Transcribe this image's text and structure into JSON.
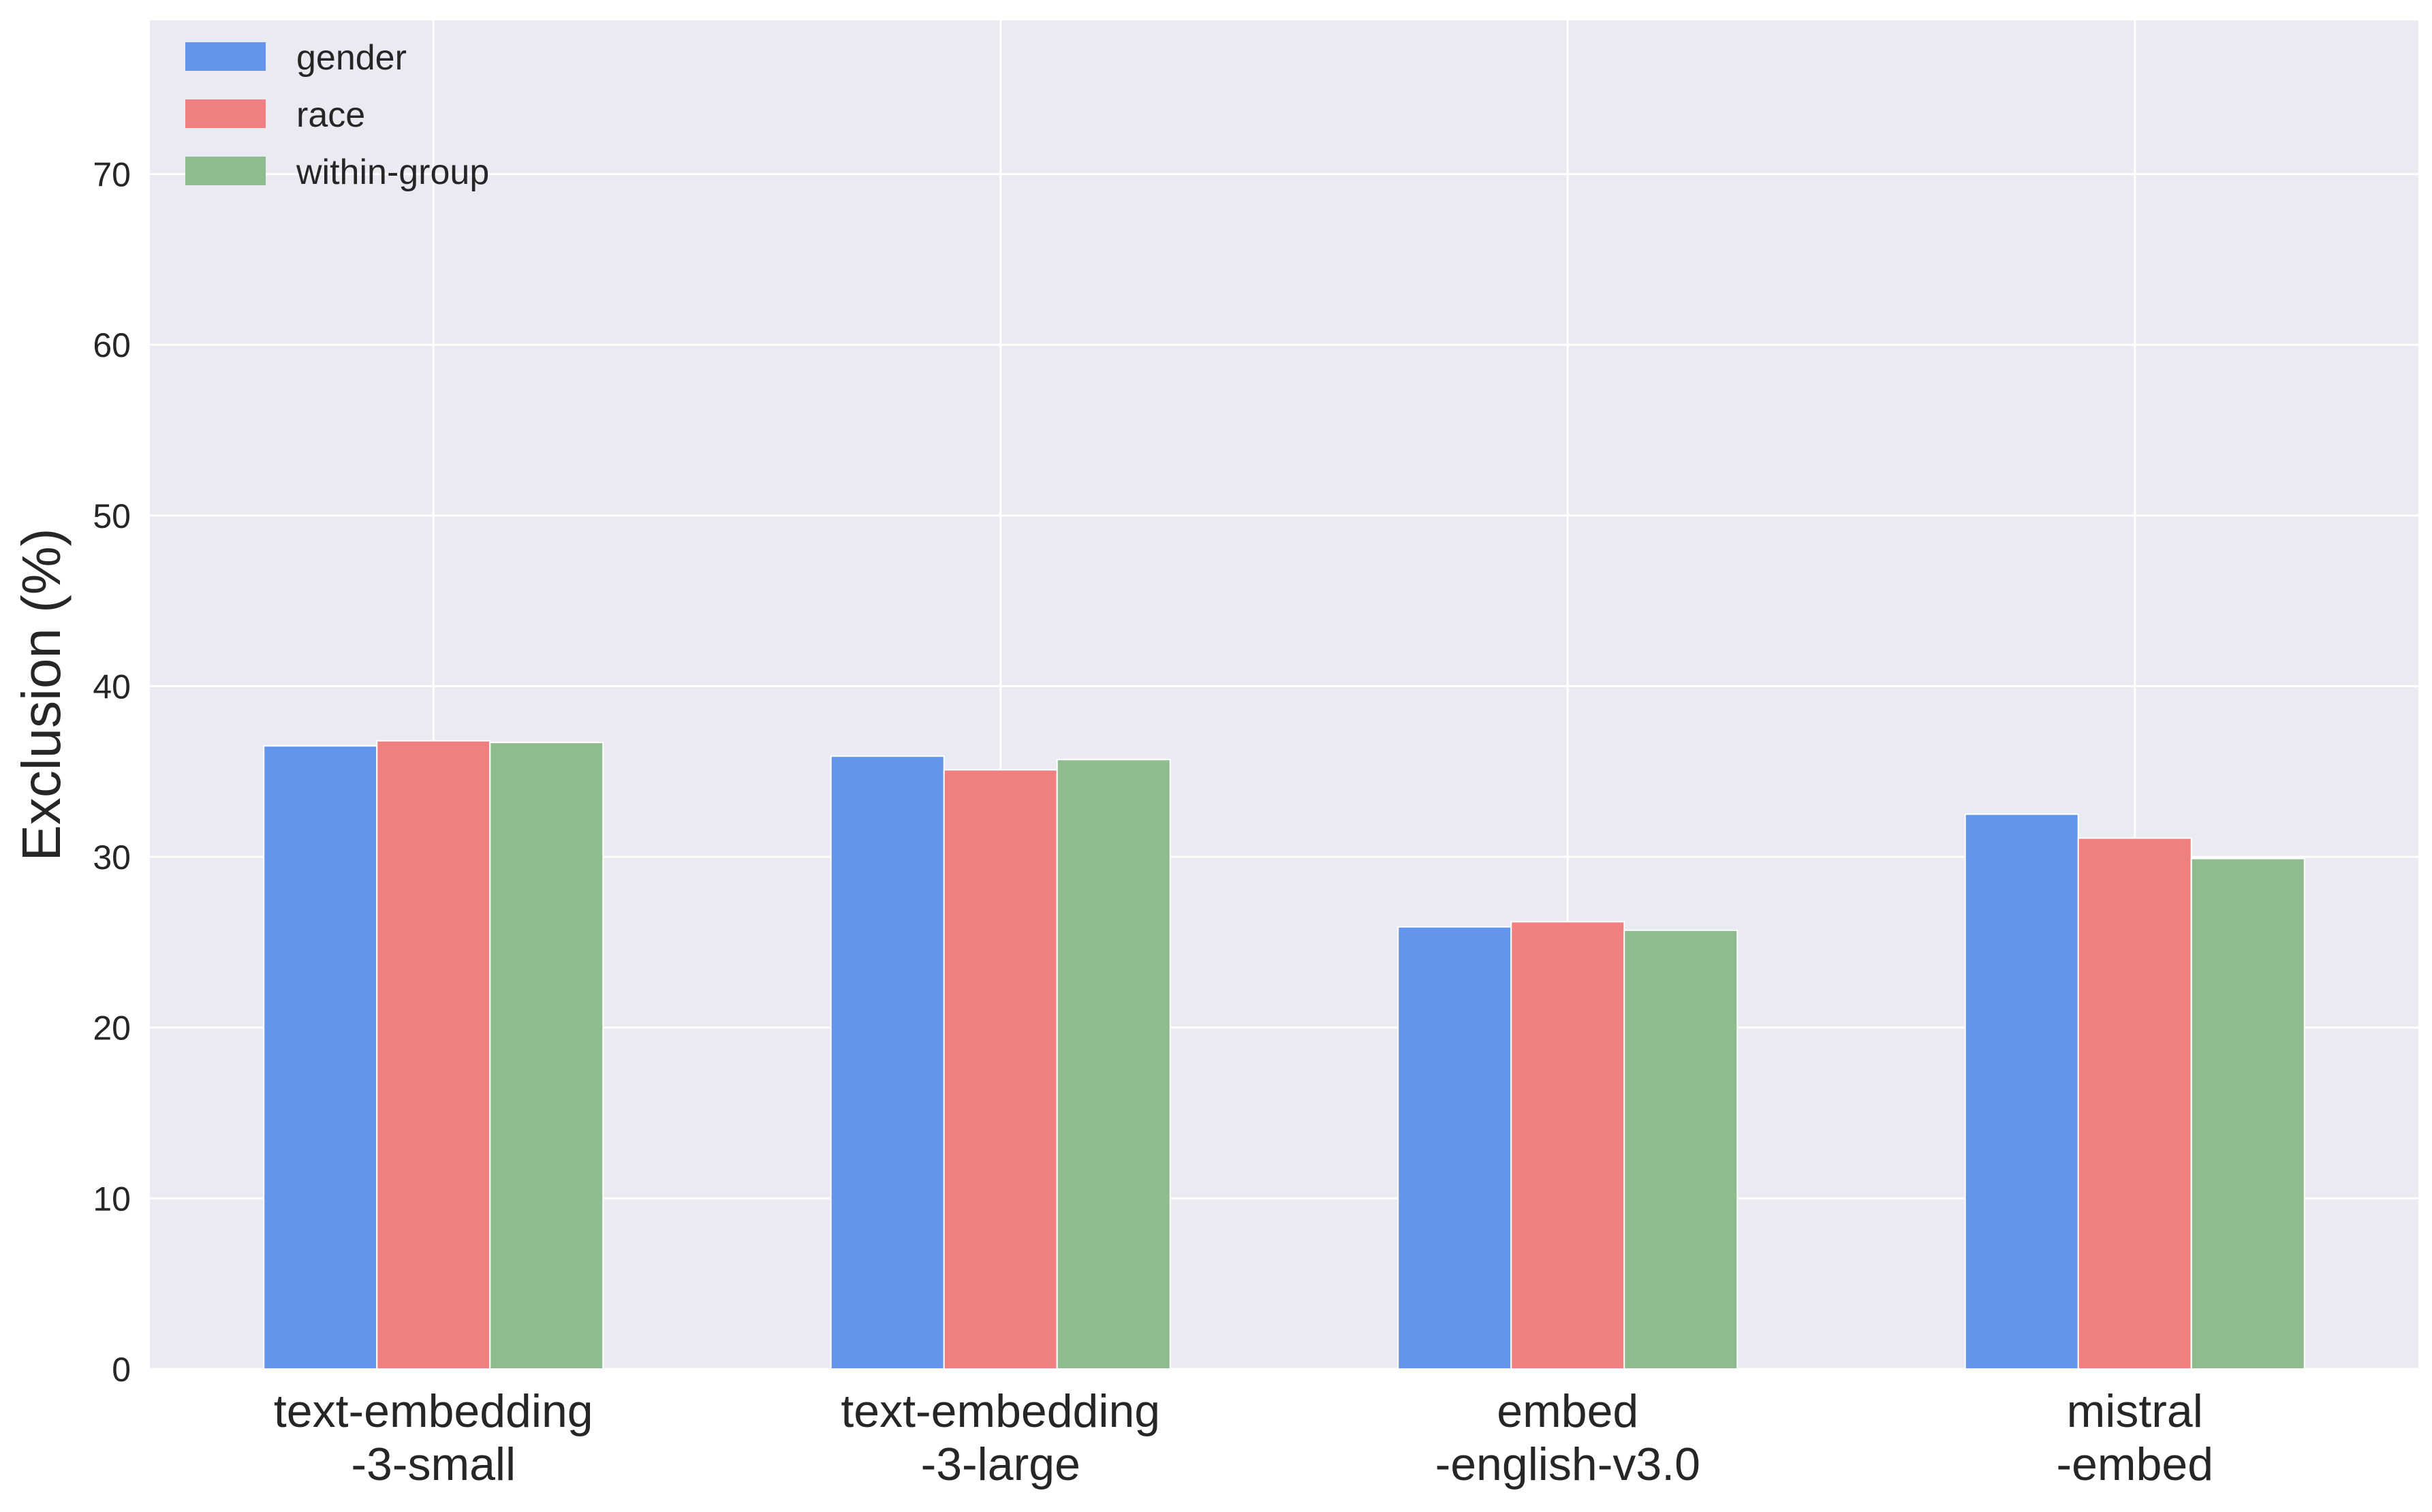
{
  "chart_data": {
    "type": "bar",
    "title": "",
    "xlabel": "",
    "ylabel": "Exclusion (%)",
    "categories": [
      [
        "text-embedding",
        "-3-small"
      ],
      [
        "text-embedding",
        "-3-large"
      ],
      [
        "embed",
        "-english-v3.0"
      ],
      [
        "mistral",
        "-embed"
      ]
    ],
    "series": [
      {
        "name": "gender",
        "color": "#6495ED",
        "values": [
          36.5,
          35.9,
          25.9,
          32.5
        ]
      },
      {
        "name": "race",
        "color": "#F08080",
        "values": [
          36.8,
          35.1,
          26.2,
          31.1
        ]
      },
      {
        "name": "within-group",
        "color": "#8FBC8F",
        "values": [
          36.7,
          35.7,
          25.7,
          29.9
        ]
      }
    ],
    "ylim": [
      0,
      79
    ],
    "yticks": [
      0,
      10,
      20,
      30,
      40,
      50,
      60,
      70
    ],
    "grid": true,
    "legend_position": "top-left",
    "background_color": "#EAEAF2",
    "grid_color": "#FFFFFF"
  }
}
